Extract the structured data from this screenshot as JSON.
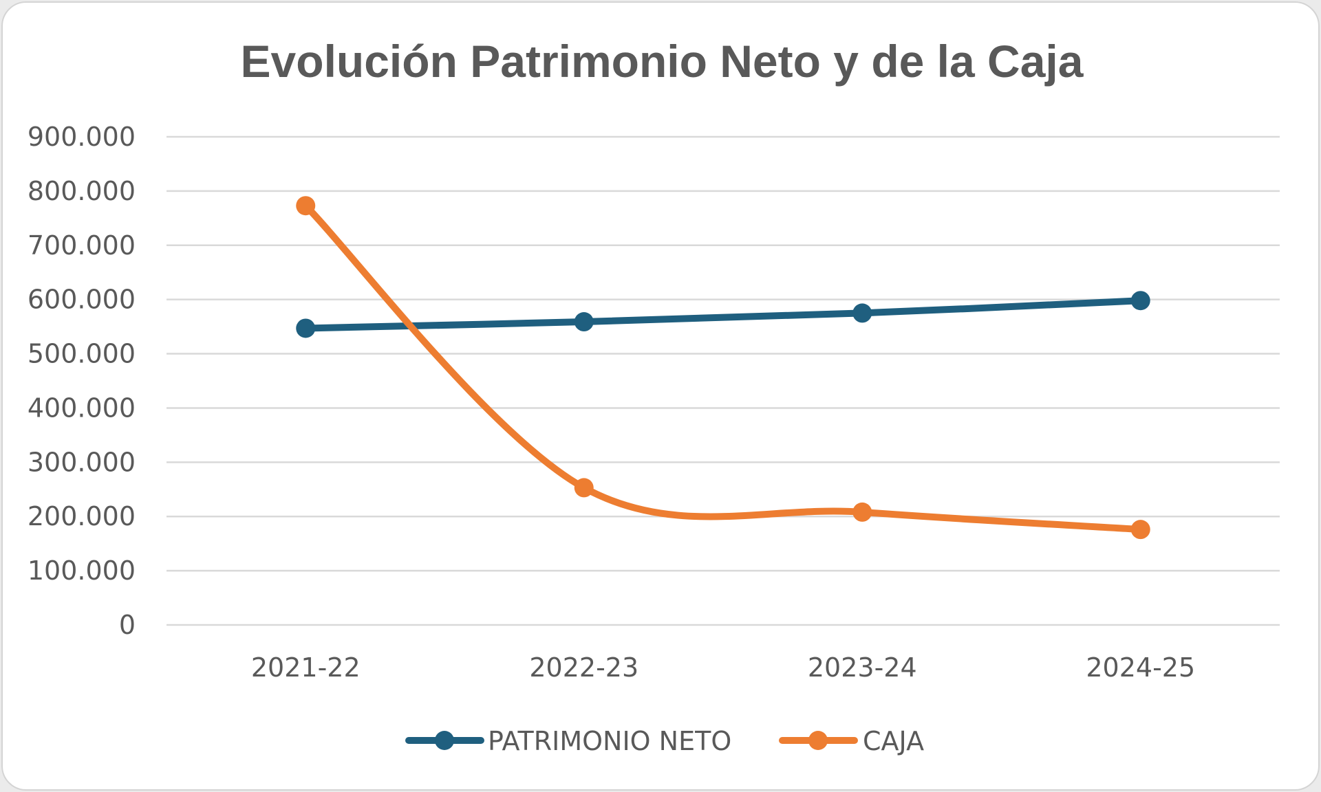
{
  "chart_data": {
    "type": "line",
    "title": "Evolución Patrimonio Neto y de la Caja",
    "xlabel": "",
    "ylabel": "",
    "categories": [
      "2021-22",
      "2022-23",
      "2023-24",
      "2024-25"
    ],
    "series": [
      {
        "name": "PATRIMONIO NETO",
        "color": "#1f5f7f",
        "values": [
          547000,
          559000,
          575000,
          598000
        ]
      },
      {
        "name": "CAJA",
        "color": "#ed7d31",
        "values": [
          773000,
          253000,
          208000,
          176000
        ]
      }
    ],
    "ylim": [
      0,
      900000
    ],
    "yticks": [
      0,
      100000,
      200000,
      300000,
      400000,
      500000,
      600000,
      700000,
      800000,
      900000
    ],
    "ytick_labels": [
      "0",
      "100.000",
      "200.000",
      "300.000",
      "400.000",
      "500.000",
      "600.000",
      "700.000",
      "800.000",
      "900.000"
    ],
    "grid": true,
    "smooth": true,
    "legend_position": "bottom"
  }
}
